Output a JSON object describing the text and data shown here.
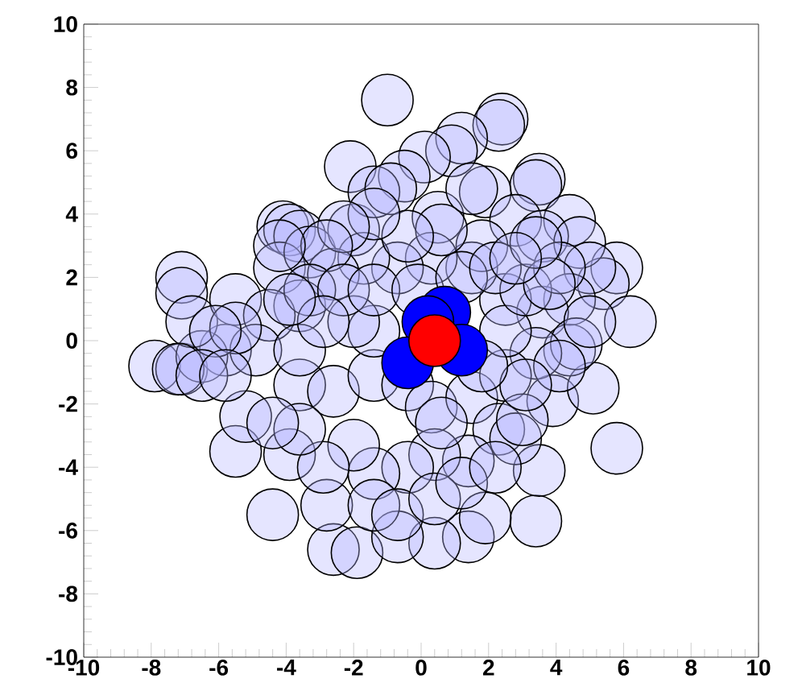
{
  "chart_data": {
    "type": "scatter",
    "marker": "circle",
    "xlim": [
      -10,
      10
    ],
    "ylim": [
      -10,
      10
    ],
    "xticks": [
      -10,
      -8,
      -6,
      -4,
      -2,
      0,
      2,
      4,
      6,
      8,
      10
    ],
    "yticks": [
      -10,
      -8,
      -6,
      -4,
      -2,
      0,
      2,
      4,
      6,
      8,
      10
    ],
    "series": [
      {
        "color": "#b4b4ff",
        "x": [
          -1.0,
          2.4,
          2.3,
          1.2,
          0.9,
          0.1,
          -0.5,
          -2.1,
          3.5,
          3.4,
          1.9,
          4.4,
          0.5,
          -4.1,
          -3.9,
          -3.6,
          -7.1,
          -7.1,
          5.8,
          5.4,
          6.2,
          -7.9,
          -7.1,
          5.8,
          -5.5,
          -4.4,
          3.4,
          1.4,
          0.4,
          -2.6,
          -1.9,
          -0.7,
          3.9,
          5.1,
          3.5,
          1.9,
          -2.8,
          -3.9,
          -5.2,
          -5.8,
          -6.5,
          -6.8,
          -5.5,
          -4.2,
          -3.3,
          -2.0,
          -1.4,
          -0.9,
          1.5,
          2.8,
          3.6,
          4.7,
          5.0,
          4.4,
          3.6,
          4.4,
          4.6,
          3.4,
          2.5,
          1.5,
          0.3,
          -0.7,
          -1.7,
          -2.6,
          -3.6,
          -4.5,
          -4.9,
          -3.6,
          -2.6,
          -1.4,
          -1.4,
          -2.0,
          -0.4,
          0.3,
          1.5,
          2.5,
          2.3,
          2.8,
          1.4,
          0.4,
          -0.4,
          -1.4,
          -2.0,
          -2.9,
          -3.6,
          -4.4,
          -1.4,
          -0.7,
          0.4,
          1.2,
          2.2,
          3.0,
          0.6,
          2.5,
          3.1,
          1.8,
          0.6,
          -0.4,
          -1.4,
          -2.3,
          -2.8,
          -4.2,
          -3.3,
          -2.3,
          -1.4,
          -0.1,
          1.2,
          2.2,
          4.1,
          3.8,
          5.0,
          4.1,
          3.1,
          1.8,
          -3.6,
          -2.9,
          -5.5,
          -6.1,
          -7.2,
          -6.5,
          -5.8,
          -3.9,
          3.4,
          2.8
        ],
        "values": [
          7.6,
          7.0,
          6.8,
          6.4,
          6.0,
          5.8,
          5.2,
          5.5,
          5.1,
          4.9,
          4.7,
          3.8,
          3.9,
          3.6,
          3.5,
          3.3,
          2.0,
          1.5,
          2.3,
          1.8,
          0.6,
          -0.8,
          -0.9,
          -3.4,
          -3.5,
          -5.5,
          -5.7,
          -6.2,
          -6.4,
          -6.6,
          -6.7,
          -6.2,
          -1.9,
          -1.5,
          -4.1,
          -5.6,
          -5.2,
          -3.6,
          -2.4,
          -0.3,
          -0.5,
          0.6,
          1.3,
          2.3,
          2.8,
          3.5,
          4.7,
          4.8,
          4.8,
          3.8,
          3.3,
          3.1,
          2.3,
          1.3,
          0.9,
          -0.3,
          -0.1,
          -0.4,
          1.3,
          2.3,
          2.6,
          2.3,
          2.6,
          2.1,
          1.1,
          0.8,
          -0.3,
          -1.4,
          -1.6,
          -1.1,
          0.3,
          0.6,
          -1.4,
          -2.1,
          -1.8,
          -1.1,
          -2.8,
          -3.1,
          -3.8,
          -3.6,
          -4.0,
          -4.2,
          -3.3,
          -4.0,
          -2.8,
          -2.6,
          -5.2,
          -5.5,
          -5.0,
          -4.5,
          -4.0,
          -2.5,
          -2.6,
          0.3,
          1.6,
          3.0,
          3.5,
          3.3,
          4.0,
          3.6,
          3.0,
          3.0,
          1.6,
          1.6,
          1.6,
          1.6,
          2.0,
          2.3,
          2.3,
          1.8,
          0.6,
          -0.8,
          -1.4,
          -0.8,
          -0.3,
          0.6,
          0.4,
          0.3,
          -0.9,
          -1.1,
          -1.1,
          1.3,
          3.1,
          2.6
        ]
      },
      {
        "color": "#0000ff",
        "x": [
          0.7,
          0.2,
          -0.4,
          1.2
        ],
        "values": [
          0.9,
          0.6,
          -0.7,
          -0.3
        ]
      },
      {
        "color": "#ff0000",
        "x": [
          0.4
        ],
        "values": [
          0.0
        ]
      }
    ]
  }
}
